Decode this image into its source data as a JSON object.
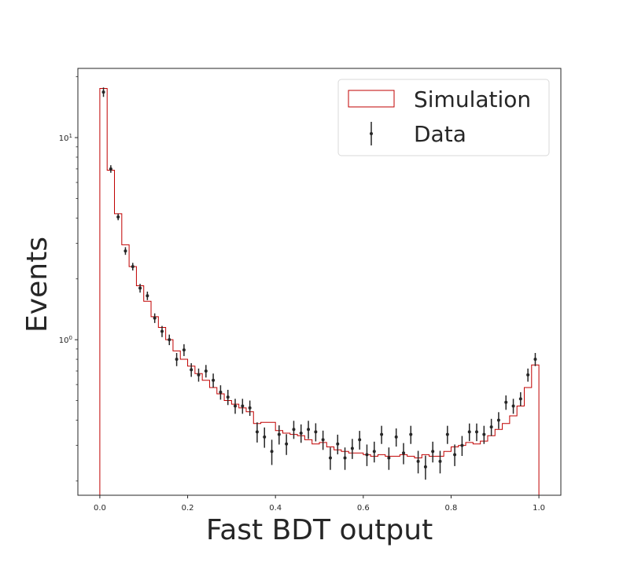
{
  "chart_data": {
    "type": "histogram",
    "xlabel": "Fast BDT output",
    "ylabel": "Events",
    "xlim": [
      -0.05,
      1.05
    ],
    "ylim": [
      0.17,
      22
    ],
    "yscale": "log",
    "grid": false,
    "legend_position": "top-right",
    "x_ticks": [
      {
        "value": 0.0,
        "label": "0.0"
      },
      {
        "value": 0.2,
        "label": "0.2"
      },
      {
        "value": 0.4,
        "label": "0.4"
      },
      {
        "value": 0.6,
        "label": "0.6"
      },
      {
        "value": 0.8,
        "label": "0.8"
      },
      {
        "value": 1.0,
        "label": "1.0"
      }
    ],
    "y_major_ticks": [
      {
        "value": 1,
        "label": "10",
        "exp": "0"
      },
      {
        "value": 10,
        "label": "10",
        "exp": "1"
      }
    ],
    "bin_edges": [
      0.0,
      0.01667,
      0.03333,
      0.05,
      0.06667,
      0.08333,
      0.1,
      0.11667,
      0.13333,
      0.15,
      0.16667,
      0.18333,
      0.2,
      0.21667,
      0.23333,
      0.25,
      0.26667,
      0.28333,
      0.3,
      0.31667,
      0.33333,
      0.35,
      0.36667,
      0.38333,
      0.4,
      0.41667,
      0.43333,
      0.45,
      0.46667,
      0.48333,
      0.5,
      0.51667,
      0.53333,
      0.55,
      0.56667,
      0.58333,
      0.6,
      0.61667,
      0.63333,
      0.65,
      0.66667,
      0.68333,
      0.7,
      0.71667,
      0.73333,
      0.75,
      0.76667,
      0.78333,
      0.8,
      0.81667,
      0.83333,
      0.85,
      0.86667,
      0.88333,
      0.9,
      0.91667,
      0.93333,
      0.95,
      0.96667,
      0.98333,
      1.0
    ],
    "series": [
      {
        "name": "Simulation",
        "kind": "step",
        "color": "#c00000",
        "values": [
          17.5,
          6.9,
          4.2,
          2.95,
          2.3,
          1.85,
          1.55,
          1.3,
          1.15,
          1.0,
          0.88,
          0.8,
          0.74,
          0.68,
          0.63,
          0.58,
          0.54,
          0.5,
          0.48,
          0.46,
          0.44,
          0.385,
          0.39,
          0.39,
          0.355,
          0.345,
          0.34,
          0.335,
          0.32,
          0.305,
          0.31,
          0.295,
          0.285,
          0.28,
          0.275,
          0.275,
          0.27,
          0.265,
          0.27,
          0.265,
          0.265,
          0.27,
          0.265,
          0.26,
          0.27,
          0.265,
          0.265,
          0.28,
          0.295,
          0.3,
          0.31,
          0.305,
          0.315,
          0.335,
          0.36,
          0.385,
          0.42,
          0.47,
          0.58,
          0.75
        ]
      },
      {
        "name": "Data",
        "kind": "errorbar",
        "color": "#262626",
        "x": [
          0.0083,
          0.025,
          0.0417,
          0.0583,
          0.075,
          0.0917,
          0.1083,
          0.125,
          0.1417,
          0.1583,
          0.175,
          0.1917,
          0.2083,
          0.225,
          0.2417,
          0.2583,
          0.275,
          0.2917,
          0.3083,
          0.325,
          0.3417,
          0.3583,
          0.375,
          0.3917,
          0.4083,
          0.425,
          0.4417,
          0.4583,
          0.475,
          0.4917,
          0.5083,
          0.525,
          0.5417,
          0.5583,
          0.575,
          0.5917,
          0.6083,
          0.625,
          0.6417,
          0.6583,
          0.675,
          0.6917,
          0.7083,
          0.725,
          0.7417,
          0.7583,
          0.775,
          0.7917,
          0.8083,
          0.825,
          0.8417,
          0.8583,
          0.875,
          0.8917,
          0.9083,
          0.925,
          0.9417,
          0.9583,
          0.975,
          0.9917
        ],
        "y": [
          16.8,
          7.0,
          4.05,
          2.75,
          2.3,
          1.8,
          1.65,
          1.28,
          1.1,
          1.0,
          0.8,
          0.89,
          0.71,
          0.67,
          0.7,
          0.63,
          0.55,
          0.52,
          0.47,
          0.47,
          0.46,
          0.35,
          0.33,
          0.28,
          0.34,
          0.305,
          0.36,
          0.345,
          0.36,
          0.35,
          0.32,
          0.26,
          0.305,
          0.26,
          0.29,
          0.32,
          0.27,
          0.28,
          0.34,
          0.26,
          0.33,
          0.275,
          0.34,
          0.25,
          0.235,
          0.28,
          0.25,
          0.34,
          0.27,
          0.3,
          0.35,
          0.35,
          0.34,
          0.37,
          0.4,
          0.49,
          0.47,
          0.51,
          0.67,
          0.8
        ],
        "yerr": [
          0.9,
          0.3,
          0.15,
          0.12,
          0.1,
          0.09,
          0.08,
          0.07,
          0.07,
          0.06,
          0.06,
          0.06,
          0.055,
          0.05,
          0.05,
          0.05,
          0.045,
          0.045,
          0.04,
          0.04,
          0.04,
          0.04,
          0.038,
          0.04,
          0.037,
          0.036,
          0.037,
          0.036,
          0.037,
          0.036,
          0.035,
          0.033,
          0.034,
          0.033,
          0.033,
          0.034,
          0.033,
          0.033,
          0.035,
          0.033,
          0.034,
          0.033,
          0.035,
          0.032,
          0.032,
          0.033,
          0.032,
          0.035,
          0.033,
          0.034,
          0.035,
          0.035,
          0.035,
          0.036,
          0.038,
          0.04,
          0.04,
          0.04,
          0.05,
          0.06
        ]
      }
    ]
  }
}
